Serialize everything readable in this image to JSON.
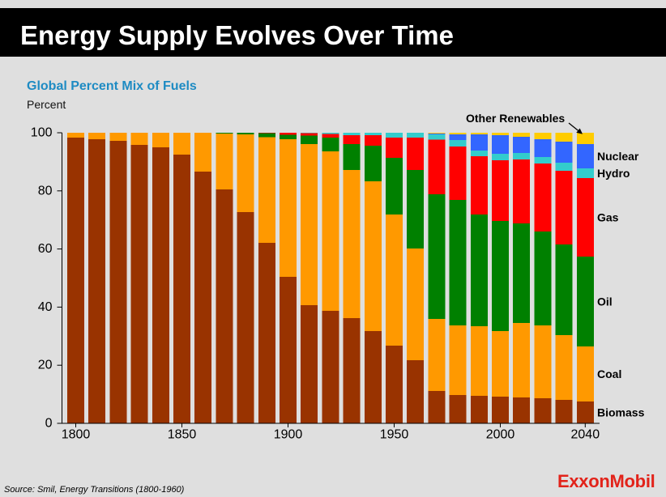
{
  "header": {
    "title": "Energy Supply Evolves Over Time"
  },
  "chart_data": {
    "type": "bar",
    "stacked": true,
    "title": "Global Percent Mix of Fuels",
    "ylabel": "Percent",
    "ylim": [
      0,
      100
    ],
    "yticks": [
      0,
      20,
      40,
      60,
      80,
      100
    ],
    "xticks": [
      1800,
      1850,
      1900,
      1950,
      2000,
      2040
    ],
    "grid": false,
    "categories": [
      1800,
      1810,
      1820,
      1830,
      1840,
      1850,
      1860,
      1870,
      1880,
      1890,
      1900,
      1910,
      1920,
      1930,
      1940,
      1950,
      1960,
      1970,
      1980,
      1990,
      2000,
      2010,
      2020,
      2030,
      2040
    ],
    "series": [
      {
        "name": "Biomass",
        "color": "#993300",
        "values": [
          98.3,
          97.8,
          97.2,
          95.8,
          95.0,
          92.5,
          86.6,
          80.5,
          72.7,
          62.1,
          50.4,
          40.7,
          38.7,
          36.2,
          31.8,
          26.7,
          21.7,
          11.1,
          9.7,
          9.5,
          9.2,
          8.9,
          8.6,
          8.1,
          7.5
        ]
      },
      {
        "name": "Coal",
        "color": "#FF9900",
        "values": [
          1.7,
          2.2,
          2.8,
          4.2,
          5.0,
          7.5,
          13.4,
          19.2,
          26.8,
          36.4,
          47.4,
          55.4,
          54.9,
          51.0,
          51.5,
          45.2,
          38.5,
          24.8,
          24.0,
          23.9,
          22.6,
          25.6,
          25.1,
          22.3,
          19.0
        ]
      },
      {
        "name": "Oil",
        "color": "#008000",
        "values": [
          0,
          0,
          0,
          0,
          0,
          0,
          0,
          0.3,
          0.5,
          1.3,
          1.5,
          2.9,
          4.7,
          8.9,
          12.2,
          19.5,
          27.0,
          42.9,
          43.2,
          38.5,
          37.8,
          34.3,
          32.3,
          31.2,
          30.9
        ]
      },
      {
        "name": "Gas",
        "color": "#FF0000",
        "values": [
          0,
          0,
          0,
          0,
          0,
          0,
          0,
          0,
          0,
          0.2,
          0.7,
          0.8,
          1.3,
          3.1,
          3.7,
          6.9,
          11.1,
          18.9,
          18.4,
          20.0,
          20.9,
          22.0,
          23.4,
          25.3,
          27.0
        ]
      },
      {
        "name": "Hydro",
        "color": "#33CCCC",
        "values": [
          0,
          0,
          0,
          0,
          0,
          0,
          0,
          0,
          0,
          0,
          0,
          0.2,
          0.4,
          0.8,
          0.8,
          1.7,
          1.7,
          1.7,
          2.2,
          2.0,
          2.3,
          2.2,
          2.2,
          2.8,
          3.3
        ]
      },
      {
        "name": "Nuclear",
        "color": "#3366FF",
        "values": [
          0,
          0,
          0,
          0,
          0,
          0,
          0,
          0,
          0,
          0,
          0,
          0,
          0,
          0,
          0,
          0,
          0,
          0.3,
          1.9,
          5.5,
          6.4,
          5.6,
          6.2,
          7.2,
          8.4
        ]
      },
      {
        "name": "Other Renewables",
        "color": "#FFCC00",
        "values": [
          0,
          0,
          0,
          0,
          0,
          0,
          0,
          0,
          0,
          0,
          0,
          0,
          0,
          0,
          0,
          0,
          0,
          0.3,
          0.6,
          0.6,
          0.8,
          1.4,
          2.2,
          3.1,
          3.9
        ]
      }
    ]
  },
  "footer": {
    "source": "Source: Smil, Energy Transitions (1800-1960)",
    "logo_text": "ExxonMobil"
  }
}
